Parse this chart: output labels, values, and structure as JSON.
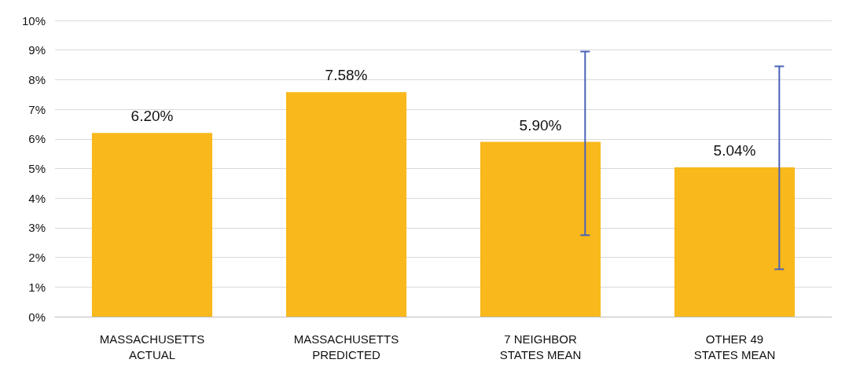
{
  "chart_data": {
    "type": "bar",
    "categories": [
      "MASSACHUSETTS ACTUAL",
      "MASSACHUSETTS PREDICTED",
      "7 NEIGHBOR STATES MEAN",
      "OTHER 49 STATES MEAN"
    ],
    "values": [
      6.2,
      7.58,
      5.9,
      5.04
    ],
    "color": "#f9b81b",
    "value_labels": [
      "6.20%",
      "7.58%",
      "5.90%",
      "5.04%"
    ],
    "errors": [
      null,
      null,
      [
        2.75,
        8.95
      ],
      [
        1.6,
        8.45
      ]
    ],
    "ylim": [
      0,
      10
    ],
    "yticks": [
      {
        "value": 0,
        "label": "0%"
      },
      {
        "value": 1,
        "label": "1%"
      },
      {
        "value": 2,
        "label": "2%"
      },
      {
        "value": 3,
        "label": "3%"
      },
      {
        "value": 4,
        "label": "4%"
      },
      {
        "value": 5,
        "label": "5%"
      },
      {
        "value": 6,
        "label": "6%"
      },
      {
        "value": 7,
        "label": "7%"
      },
      {
        "value": 8,
        "label": "8%"
      },
      {
        "value": 9,
        "label": "9%"
      },
      {
        "value": 10,
        "label": "10%"
      }
    ],
    "grid": "y"
  }
}
